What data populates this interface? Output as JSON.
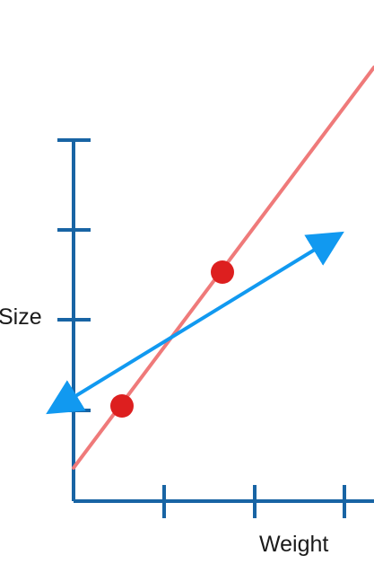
{
  "labels": {
    "y_axis": "Size",
    "x_axis": "Weight"
  },
  "colors": {
    "axis": "#1864a4",
    "pink_line": "#ef7a7a",
    "blue_arrow": "#1199f0",
    "points": "#dd1f1f"
  }
}
